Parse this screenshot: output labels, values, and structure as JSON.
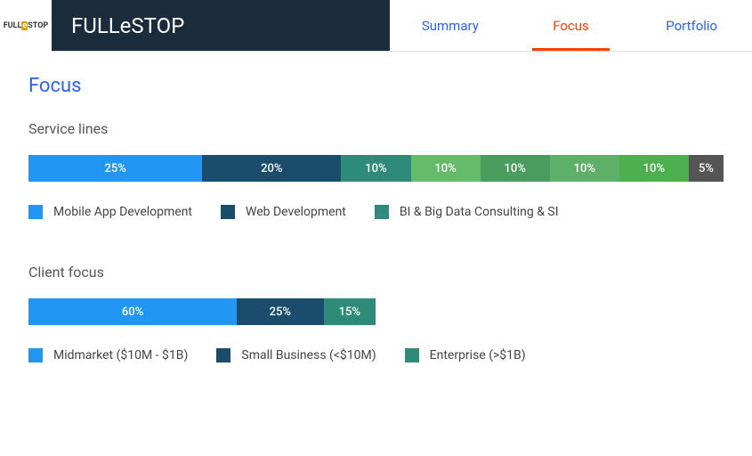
{
  "header": {
    "logo_text_left": "FULL",
    "logo_text_e": "e",
    "logo_text_right": "STOP",
    "title": "FULLeSTOP",
    "tabs": [
      {
        "label": "Summary",
        "active": false
      },
      {
        "label": "Focus",
        "active": true
      },
      {
        "label": "Portfolio",
        "active": false
      }
    ]
  },
  "page_title": "Focus",
  "service_lines": {
    "title": "Service lines",
    "type": "stacked-bar",
    "segments": [
      {
        "label": "25%",
        "width": 25,
        "color": "#2196f3"
      },
      {
        "label": "20%",
        "width": 20,
        "color": "#1a4d6b"
      },
      {
        "label": "10%",
        "width": 10,
        "color": "#2e8b7a"
      },
      {
        "label": "10%",
        "width": 10,
        "color": "#66bb6a"
      },
      {
        "label": "10%",
        "width": 10,
        "color": "#4a9b5e"
      },
      {
        "label": "10%",
        "width": 10,
        "color": "#5eb068"
      },
      {
        "label": "10%",
        "width": 10,
        "color": "#4caf50"
      },
      {
        "label": "5%",
        "width": 5,
        "color": "#555555"
      }
    ],
    "legend": [
      {
        "label": "Mobile App Development",
        "color": "#2196f3"
      },
      {
        "label": "Web Development",
        "color": "#1a4d6b"
      },
      {
        "label": "BI & Big Data Consulting & SI",
        "color": "#2e8b7a"
      }
    ]
  },
  "client_focus": {
    "title": "Client focus",
    "type": "stacked-bar",
    "segments": [
      {
        "label": "60%",
        "width": 60,
        "color": "#2196f3"
      },
      {
        "label": "25%",
        "width": 25,
        "color": "#1a4d6b"
      },
      {
        "label": "15%",
        "width": 15,
        "color": "#2e8b7a"
      }
    ],
    "legend": [
      {
        "label": "Midmarket ($10M - $1B)",
        "color": "#2196f3"
      },
      {
        "label": "Small Business (<$10M)",
        "color": "#1a4d6b"
      },
      {
        "label": "Enterprise (>$1B)",
        "color": "#2e8b7a"
      }
    ]
  }
}
